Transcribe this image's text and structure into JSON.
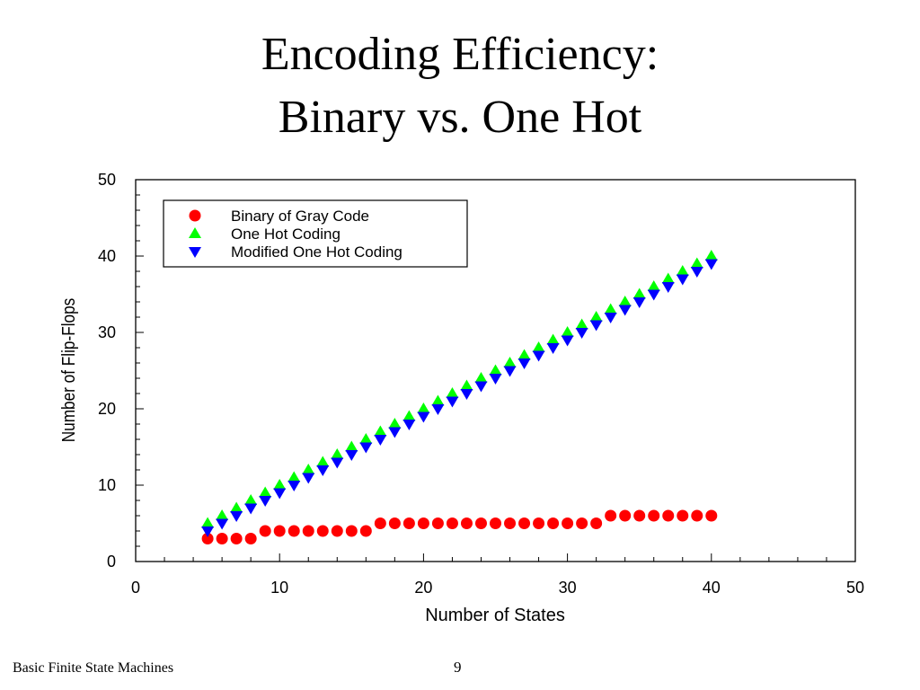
{
  "slide": {
    "title_line_1": "Encoding Efficiency:",
    "title_line_2": "Binary vs. One Hot",
    "footer_text": "Basic Finite State Machines",
    "page_number": "9"
  },
  "colors": {
    "binary": "#ff0000",
    "one_hot": "#00ff00",
    "modified_one_hot": "#0000ff"
  },
  "chart_data": {
    "type": "scatter",
    "xlabel": "Number of States",
    "ylabel": "Number of Flip-Flops",
    "xlim": [
      0,
      50
    ],
    "ylim": [
      0,
      50
    ],
    "xticks": [
      0,
      10,
      20,
      30,
      40,
      50
    ],
    "yticks": [
      0,
      10,
      20,
      30,
      40,
      50
    ],
    "grid": false,
    "legend_position": "top-left",
    "x": [
      5,
      6,
      7,
      8,
      9,
      10,
      11,
      12,
      13,
      14,
      15,
      16,
      17,
      18,
      19,
      20,
      21,
      22,
      23,
      24,
      25,
      26,
      27,
      28,
      29,
      30,
      31,
      32,
      33,
      34,
      35,
      36,
      37,
      38,
      39,
      40
    ],
    "series": [
      {
        "name": "Binary of Gray Code",
        "marker": "circle",
        "values": [
          3,
          3,
          3,
          3,
          4,
          4,
          4,
          4,
          4,
          4,
          4,
          4,
          5,
          5,
          5,
          5,
          5,
          5,
          5,
          5,
          5,
          5,
          5,
          5,
          5,
          5,
          5,
          5,
          6,
          6,
          6,
          6,
          6,
          6,
          6,
          6
        ]
      },
      {
        "name": "One Hot Coding",
        "marker": "triangle-up",
        "values": [
          5,
          6,
          7,
          8,
          9,
          10,
          11,
          12,
          13,
          14,
          15,
          16,
          17,
          18,
          19,
          20,
          21,
          22,
          23,
          24,
          25,
          26,
          27,
          28,
          29,
          30,
          31,
          32,
          33,
          34,
          35,
          36,
          37,
          38,
          39,
          40
        ]
      },
      {
        "name": "Modified One Hot Coding",
        "marker": "triangle-down",
        "values": [
          4,
          5,
          6,
          7,
          8,
          9,
          10,
          11,
          12,
          13,
          14,
          15,
          16,
          17,
          18,
          19,
          20,
          21,
          22,
          23,
          24,
          25,
          26,
          27,
          28,
          29,
          30,
          31,
          32,
          33,
          34,
          35,
          36,
          37,
          38,
          39
        ]
      }
    ]
  }
}
